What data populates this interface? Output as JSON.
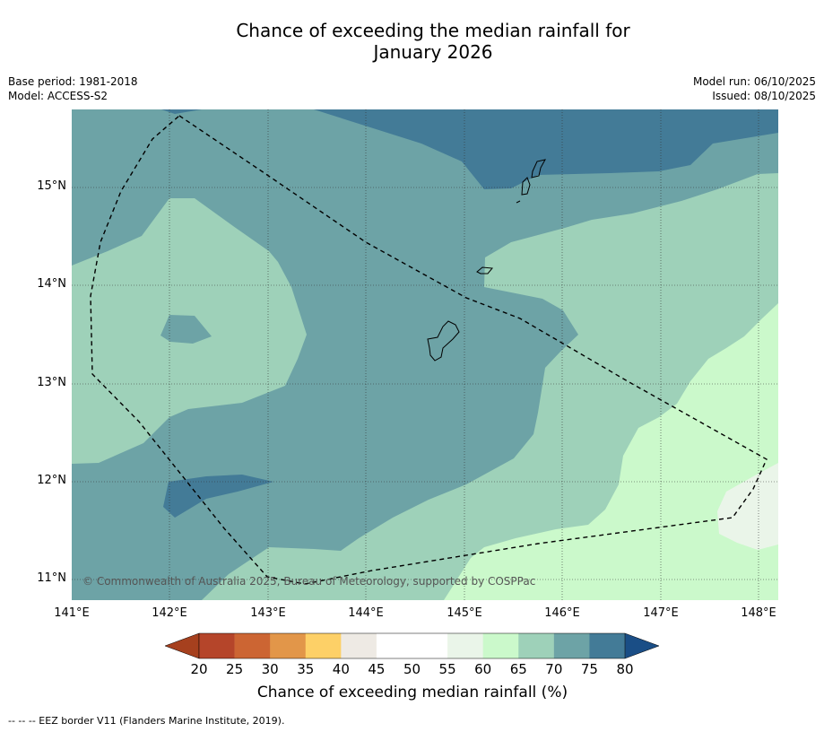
{
  "title": {
    "line1": "Chance of exceeding the median rainfall for",
    "line2": "January 2026"
  },
  "meta": {
    "base_period": "Base period: 1981-2018",
    "model": "Model: ACCESS-S2",
    "model_run": "Model run: 06/10/2025",
    "issued": "Issued: 08/10/2025"
  },
  "axes": {
    "lat_labels": [
      "15°N",
      "14°N",
      "13°N",
      "12°N",
      "11°N"
    ],
    "lon_labels": [
      "141°E",
      "142°E",
      "143°E",
      "144°E",
      "145°E",
      "146°E",
      "147°E",
      "148°E"
    ]
  },
  "copyright": "© Commonwealth of Australia 2025, Bureau of Meteorology, supported by COSPPac",
  "colorbar": {
    "title": "Chance of exceeding median rainfall (%)",
    "ticks": [
      "20",
      "25",
      "30",
      "35",
      "40",
      "45",
      "50",
      "55",
      "60",
      "65",
      "70",
      "75",
      "80"
    ],
    "colors": [
      "#b5452a",
      "#cc6533",
      "#e29649",
      "#fdd067",
      "#eeeae4",
      "#ffffff",
      "#ffffff",
      "#eaf5e9",
      "#cbf9cb",
      "#9ed1b9",
      "#6da3a6",
      "#437b97"
    ],
    "under_color": "#a6401e",
    "over_color": "#1a4e86"
  },
  "footnote": "-- -- -- EEZ border V11 (Flanders Marine Institute, 2019)."
}
